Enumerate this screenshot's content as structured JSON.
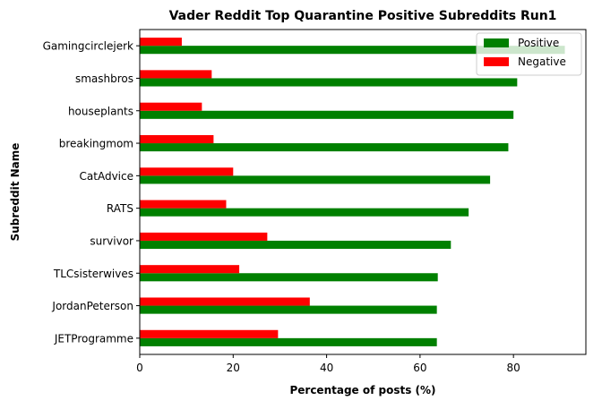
{
  "chart_data": {
    "type": "bar",
    "orientation": "horizontal",
    "title": "Vader Reddit Top Quarantine Positive Subreddits Run1",
    "xlabel": "Percentage of posts (%)",
    "ylabel": "Subreddit Name",
    "xlim": [
      0,
      95.5
    ],
    "xticks": [
      0,
      20,
      40,
      60,
      80
    ],
    "grid": false,
    "legend_position": "top-right",
    "categories": [
      "Gamingcirclejerk",
      "smashbros",
      "houseplants",
      "breakingmom",
      "CatAdvice",
      "RATS",
      "survivor",
      "TLCsisterwives",
      "JordanPeterson",
      "JETProgramme"
    ],
    "series": [
      {
        "name": "Positive",
        "color": "#008000",
        "values": [
          91.0,
          80.8,
          80.0,
          78.9,
          75.0,
          70.4,
          66.6,
          63.8,
          63.6,
          63.6
        ]
      },
      {
        "name": "Negative",
        "color": "#ff0000",
        "values": [
          9.0,
          15.4,
          13.3,
          15.8,
          20.0,
          18.5,
          27.3,
          21.3,
          36.4,
          29.6
        ]
      }
    ]
  }
}
